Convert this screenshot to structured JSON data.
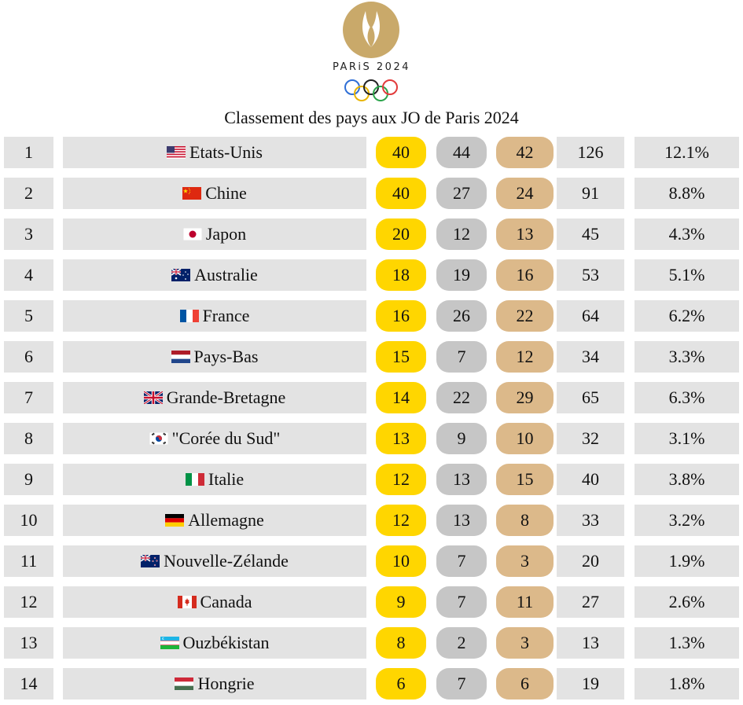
{
  "header": {
    "logo_text": "PARiS 2024",
    "title": "Classement des pays aux JO de Paris 2024"
  },
  "colors": {
    "gold": "#ffd600",
    "silver": "#c6c6c6",
    "bronze": "#dcb98a",
    "cell": "#e3e3e3",
    "logo_gold": "#c9a96a"
  },
  "rows": [
    {
      "rank": "1",
      "flag_icon": "usa-flag-icon",
      "country": "Etats-Unis",
      "gold": "40",
      "silver": "44",
      "bronze": "42",
      "total": "126",
      "pct": "12.1%"
    },
    {
      "rank": "2",
      "flag_icon": "china-flag-icon",
      "country": "Chine",
      "gold": "40",
      "silver": "27",
      "bronze": "24",
      "total": "91",
      "pct": "8.8%"
    },
    {
      "rank": "3",
      "flag_icon": "japan-flag-icon",
      "country": "Japon",
      "gold": "20",
      "silver": "12",
      "bronze": "13",
      "total": "45",
      "pct": "4.3%"
    },
    {
      "rank": "4",
      "flag_icon": "australia-flag-icon",
      "country": "Australie",
      "gold": "18",
      "silver": "19",
      "bronze": "16",
      "total": "53",
      "pct": "5.1%"
    },
    {
      "rank": "5",
      "flag_icon": "france-flag-icon",
      "country": "France",
      "gold": "16",
      "silver": "26",
      "bronze": "22",
      "total": "64",
      "pct": "6.2%"
    },
    {
      "rank": "6",
      "flag_icon": "netherlands-flag-icon",
      "country": "Pays-Bas",
      "gold": "15",
      "silver": "7",
      "bronze": "12",
      "total": "34",
      "pct": "3.3%"
    },
    {
      "rank": "7",
      "flag_icon": "uk-flag-icon",
      "country": "Grande-Bretagne",
      "gold": "14",
      "silver": "22",
      "bronze": "29",
      "total": "65",
      "pct": "6.3%"
    },
    {
      "rank": "8",
      "flag_icon": "south-korea-flag-icon",
      "country": "\"Corée du Sud\"",
      "gold": "13",
      "silver": "9",
      "bronze": "10",
      "total": "32",
      "pct": "3.1%"
    },
    {
      "rank": "9",
      "flag_icon": "italy-flag-icon",
      "country": "Italie",
      "gold": "12",
      "silver": "13",
      "bronze": "15",
      "total": "40",
      "pct": "3.8%"
    },
    {
      "rank": "10",
      "flag_icon": "germany-flag-icon",
      "country": "Allemagne",
      "gold": "12",
      "silver": "13",
      "bronze": "8",
      "total": "33",
      "pct": "3.2%"
    },
    {
      "rank": "11",
      "flag_icon": "new-zealand-flag-icon",
      "country": "Nouvelle-Zélande",
      "gold": "10",
      "silver": "7",
      "bronze": "3",
      "total": "20",
      "pct": "1.9%"
    },
    {
      "rank": "12",
      "flag_icon": "canada-flag-icon",
      "country": "Canada",
      "gold": "9",
      "silver": "7",
      "bronze": "11",
      "total": "27",
      "pct": "2.6%"
    },
    {
      "rank": "13",
      "flag_icon": "uzbekistan-flag-icon",
      "country": "Ouzbékistan",
      "gold": "8",
      "silver": "2",
      "bronze": "3",
      "total": "13",
      "pct": "1.3%"
    },
    {
      "rank": "14",
      "flag_icon": "hungary-flag-icon",
      "country": "Hongrie",
      "gold": "6",
      "silver": "7",
      "bronze": "6",
      "total": "19",
      "pct": "1.8%"
    }
  ]
}
